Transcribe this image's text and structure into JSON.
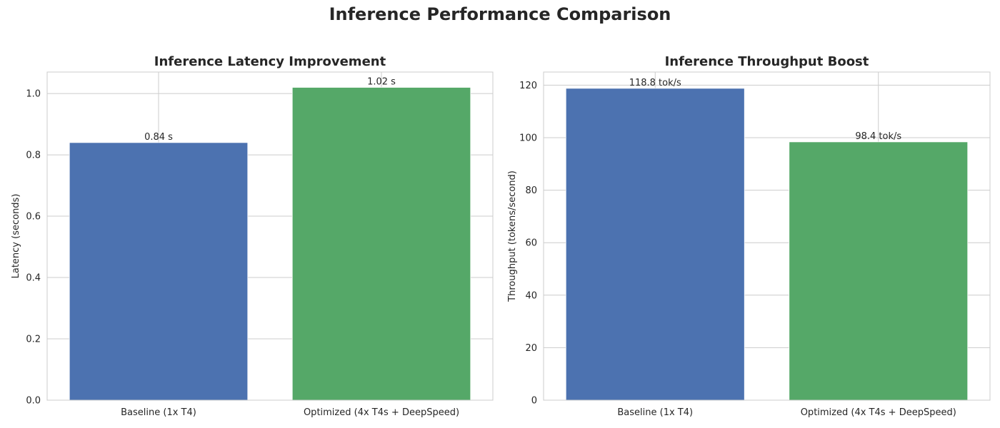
{
  "figure": {
    "title": "Inference Performance Comparison"
  },
  "chart_data": [
    {
      "type": "bar",
      "title": "Inference Latency Improvement",
      "xlabel": "",
      "ylabel": "Latency (seconds)",
      "categories": [
        "Baseline (1x T4)",
        "Optimized (4x T4s + DeepSpeed)"
      ],
      "values": [
        0.84,
        1.02
      ],
      "data_labels": [
        "0.84 s",
        "1.02 s"
      ],
      "colors": [
        "#4c72b0",
        "#55a868"
      ],
      "ylim": [
        0,
        1.07
      ],
      "yticks": [
        0.0,
        0.2,
        0.4,
        0.6,
        0.8,
        1.0
      ],
      "ytick_labels": [
        "0.0",
        "0.2",
        "0.4",
        "0.6",
        "0.8",
        "1.0"
      ],
      "grid": true,
      "legend": "none"
    },
    {
      "type": "bar",
      "title": "Inference Throughput Boost",
      "xlabel": "",
      "ylabel": "Throughput (tokens/second)",
      "categories": [
        "Baseline (1x T4)",
        "Optimized (4x T4s + DeepSpeed)"
      ],
      "values": [
        118.8,
        98.4
      ],
      "data_labels": [
        "118.8 tok/s",
        "98.4 tok/s"
      ],
      "colors": [
        "#4c72b0",
        "#55a868"
      ],
      "ylim": [
        0,
        125
      ],
      "yticks": [
        0,
        20,
        40,
        60,
        80,
        100,
        120
      ],
      "ytick_labels": [
        "0",
        "20",
        "40",
        "60",
        "80",
        "100",
        "120"
      ],
      "grid": true,
      "legend": "none"
    }
  ]
}
